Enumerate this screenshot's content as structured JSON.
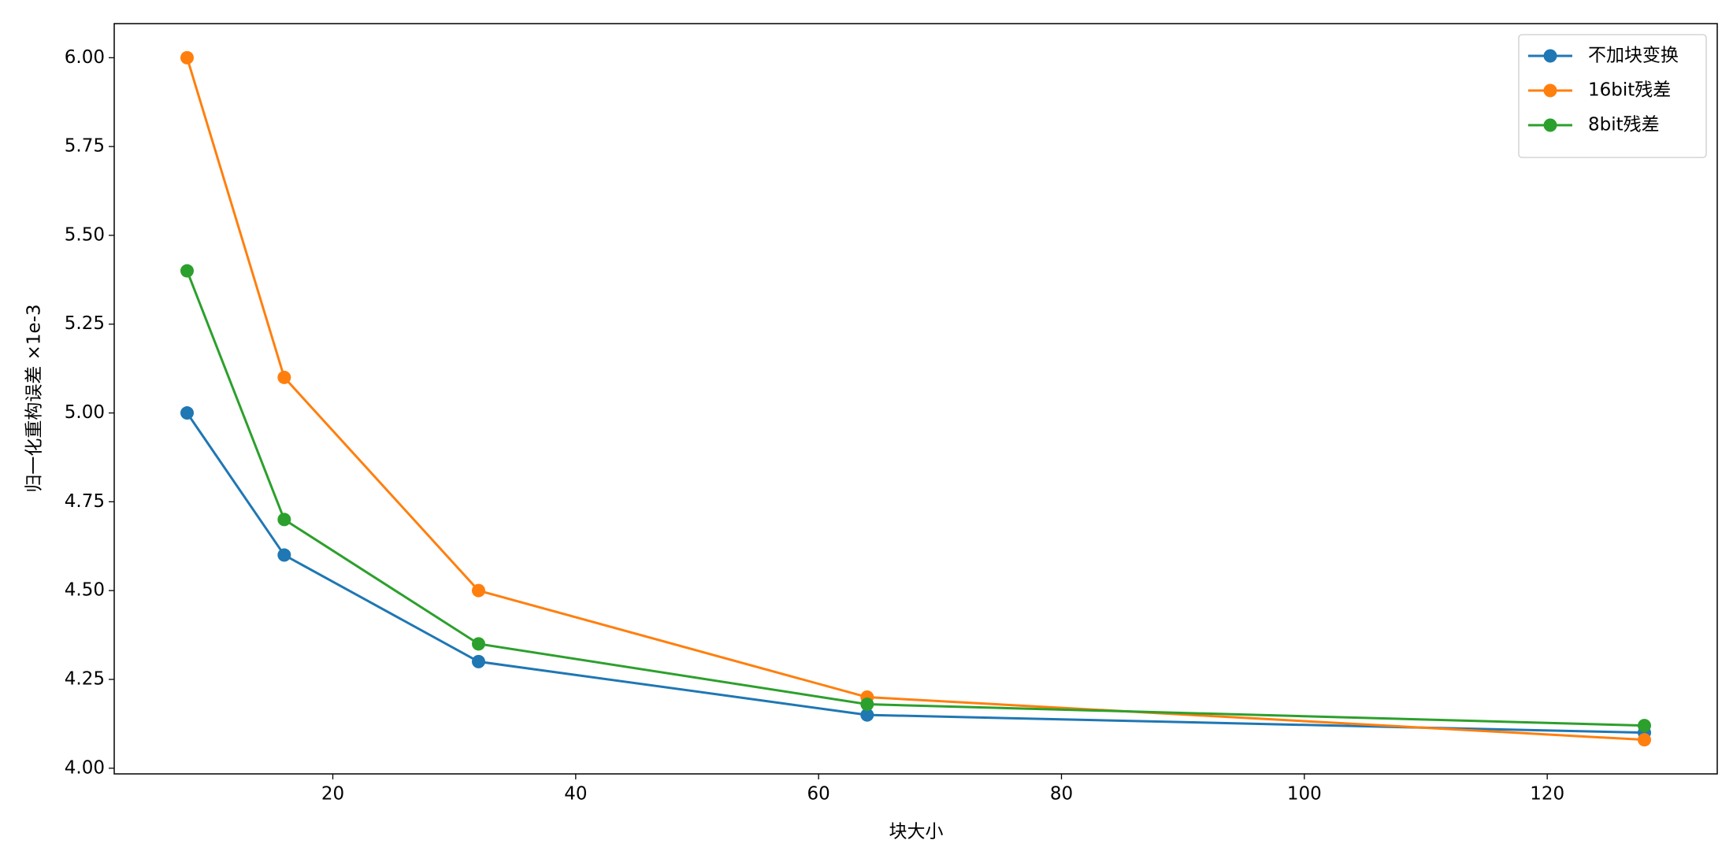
{
  "chart_data": {
    "type": "line",
    "x_label": "块大小",
    "y_label": "归一化重构误差 ×1e-3",
    "x": [
      8,
      16,
      32,
      64,
      128
    ],
    "series": [
      {
        "name": "不加块变换",
        "color": "#1f77b4",
        "values": [
          5.0,
          4.6,
          4.3,
          4.15,
          4.1
        ]
      },
      {
        "name": "16bit残差",
        "color": "#ff7f0e",
        "values": [
          6.0,
          5.1,
          4.5,
          4.2,
          4.08
        ]
      },
      {
        "name": "8bit残差",
        "color": "#2ca02c",
        "values": [
          5.4,
          4.7,
          4.35,
          4.18,
          4.12
        ]
      }
    ],
    "xlim": [
      2,
      134
    ],
    "ylim": [
      3.984,
      6.096
    ],
    "xticks": [
      20,
      40,
      60,
      80,
      100,
      120
    ],
    "yticks": [
      {
        "value": 4.0,
        "label": "4.00"
      },
      {
        "value": 4.25,
        "label": "4.25"
      },
      {
        "value": 4.5,
        "label": "4.50"
      },
      {
        "value": 4.75,
        "label": "4.75"
      },
      {
        "value": 5.0,
        "label": "5.00"
      },
      {
        "value": 5.25,
        "label": "5.25"
      },
      {
        "value": 5.5,
        "label": "5.50"
      },
      {
        "value": 5.75,
        "label": "5.75"
      },
      {
        "value": 6.0,
        "label": "6.00"
      }
    ],
    "grid": false,
    "legend": "upper right"
  }
}
